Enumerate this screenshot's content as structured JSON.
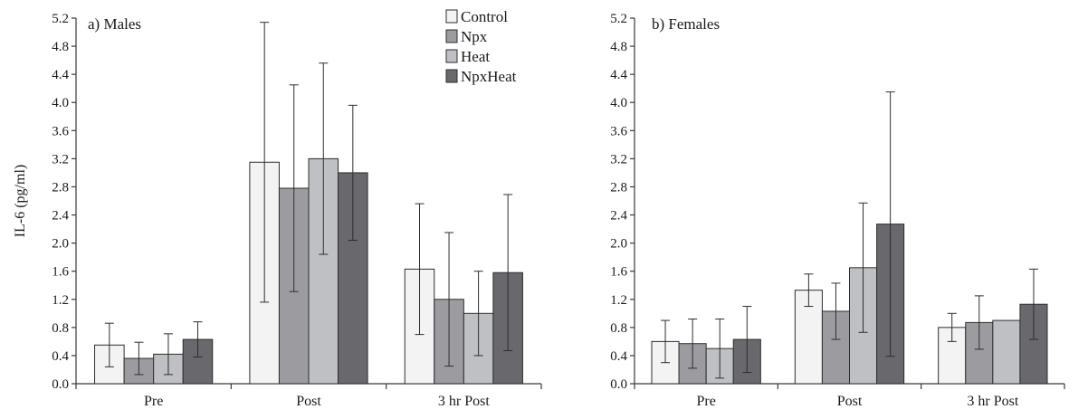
{
  "series_colors": [
    "#f2f3f2",
    "#9c9ca0",
    "#bfc0c3",
    "#68686d"
  ],
  "chart_data": [
    {
      "type": "bar",
      "title": "a) Males",
      "ylabel": "IL-6 (pg/ml)",
      "xlabel": "",
      "categories": [
        "Pre",
        "Post",
        "3 hr Post"
      ],
      "ylim": [
        0,
        5.2
      ],
      "ytick_step": 0.4,
      "legend": "top-right",
      "grid": false,
      "series": [
        {
          "name": "Control",
          "values": [
            0.55,
            3.15,
            1.63
          ],
          "errors": [
            0.31,
            1.99,
            0.93
          ]
        },
        {
          "name": "Npx",
          "values": [
            0.36,
            2.78,
            1.2
          ],
          "errors": [
            0.23,
            1.47,
            0.95
          ]
        },
        {
          "name": "Heat",
          "values": [
            0.42,
            3.2,
            1.0
          ],
          "errors": [
            0.29,
            1.36,
            0.6
          ]
        },
        {
          "name": "NpxHeat",
          "values": [
            0.63,
            3.0,
            1.58
          ],
          "errors": [
            0.25,
            0.96,
            1.11
          ]
        }
      ]
    },
    {
      "type": "bar",
      "title": "b) Females",
      "ylabel": "",
      "xlabel": "",
      "categories": [
        "Pre",
        "Post",
        "3 hr Post"
      ],
      "ylim": [
        0,
        5.2
      ],
      "ytick_step": 0.4,
      "grid": false,
      "series": [
        {
          "name": "Control",
          "values": [
            0.6,
            1.33,
            0.8
          ],
          "errors": [
            0.3,
            0.23,
            0.2
          ]
        },
        {
          "name": "Npx",
          "values": [
            0.57,
            1.03,
            0.87
          ],
          "errors": [
            0.35,
            0.4,
            0.38
          ]
        },
        {
          "name": "Heat",
          "values": [
            0.5,
            1.65,
            0.9
          ],
          "errors": [
            0.42,
            0.92,
            0.0
          ]
        },
        {
          "name": "NpxHeat",
          "values": [
            0.63,
            2.27,
            1.13
          ],
          "errors": [
            0.47,
            1.88,
            0.5
          ]
        }
      ]
    }
  ]
}
